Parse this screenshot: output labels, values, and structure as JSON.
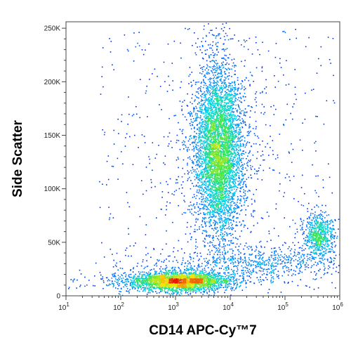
{
  "chart_data": {
    "type": "scatter",
    "title": "",
    "xlabel": "CD14 APC-Cy™7",
    "ylabel": "Side Scatter",
    "x_scale": "log",
    "xlim": [
      10,
      1000000
    ],
    "ylim": [
      0,
      256000
    ],
    "x_ticks": [
      {
        "value": 10,
        "base": "10",
        "exp": "1"
      },
      {
        "value": 100,
        "base": "10",
        "exp": "2"
      },
      {
        "value": 1000,
        "base": "10",
        "exp": "3"
      },
      {
        "value": 10000,
        "base": "10",
        "exp": "4"
      },
      {
        "value": 100000,
        "base": "10",
        "exp": "5"
      },
      {
        "value": 1000000,
        "base": "10",
        "exp": "6"
      }
    ],
    "y_ticks": [
      {
        "value": 0,
        "label": "0"
      },
      {
        "value": 50000,
        "label": "50K"
      },
      {
        "value": 100000,
        "label": "100K"
      },
      {
        "value": 150000,
        "label": "150K"
      },
      {
        "value": 200000,
        "label": "200K"
      },
      {
        "value": 250000,
        "label": "250K"
      }
    ],
    "grid": false,
    "color_scale": "density (blue → cyan → green → yellow → red)",
    "populations": [
      {
        "cd14_center": 1100,
        "ssc_center": 14000,
        "relative_count": 2800
      },
      {
        "cd14_center": 6000,
        "ssc_center": 135000,
        "relative_count": 5200
      },
      {
        "cd14_center": 400000,
        "ssc_center": 57000,
        "relative_count": 650
      },
      {
        "cd14_center": 40000,
        "ssc_center": 32000,
        "relative_count": 700
      }
    ]
  }
}
